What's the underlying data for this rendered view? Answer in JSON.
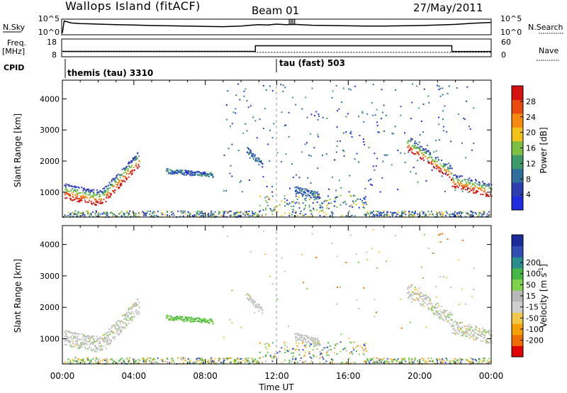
{
  "header": {
    "station": "Wallops Island (fitACF)",
    "beam": "Beam 01",
    "date": "27/May/2011"
  },
  "time_axis": {
    "label": "Time UT",
    "ticks": [
      "00:00",
      "04:00",
      "08:00",
      "12:00",
      "16:00",
      "20:00",
      "00:00"
    ]
  },
  "chart_data": [
    {
      "type": "line",
      "name": "noise-panel",
      "left_label": "N.Sky",
      "right_label": "N.Search",
      "left_ticks": [
        "10^5",
        "10^0"
      ],
      "right_ticks": [
        "10^5",
        "10^0"
      ],
      "x": [
        0,
        0.1,
        0.5,
        1,
        2,
        3,
        4,
        5,
        6,
        7,
        8,
        9,
        10,
        10.5,
        11,
        11.5,
        12,
        12.5,
        13,
        14,
        15,
        16,
        17,
        18,
        19,
        20,
        21,
        22,
        23,
        24
      ],
      "series": [
        {
          "values": [
            0.4,
            4.6,
            3.9,
            3.7,
            3.5,
            3.3,
            3.2,
            3.0,
            2.9,
            2.8,
            2.7,
            2.6,
            2.8,
            3.1,
            3.3,
            3.2,
            3.5,
            3.3,
            3.4,
            3.1,
            3.0,
            2.9,
            2.8,
            2.8,
            2.9,
            3.0,
            3.2,
            3.4,
            3.8,
            4.1
          ]
        }
      ],
      "ylim": [
        0,
        5
      ]
    },
    {
      "type": "line",
      "name": "frequency-panel",
      "left_label": "Freq.",
      "left_unit": "[MHz]",
      "right_label": "Nave",
      "left_ticks": [
        "18",
        "8"
      ],
      "right_ticks": [
        "60",
        "0"
      ],
      "x": [
        0,
        10.8,
        10.8,
        21.8,
        21.8,
        24
      ],
      "series": [
        {
          "values": [
            10.8,
            10.8,
            14.3,
            14.3,
            10.8,
            10.8
          ]
        }
      ],
      "nave_x": [
        0,
        10.8,
        10.8,
        24
      ],
      "nave_values": [
        11,
        11,
        10.3,
        10.3
      ],
      "ylim": [
        8,
        18
      ]
    },
    {
      "type": "table",
      "name": "cpid-panel",
      "label": "CPID",
      "segments": [
        {
          "start": 0,
          "text": "themis (tau) 3310"
        },
        {
          "start": 12,
          "text": "tau (fast) 503"
        }
      ]
    },
    {
      "type": "heatmap",
      "name": "power-panel",
      "ylabel": "Slant Range [km]",
      "yticks": [
        "1000",
        "2000",
        "3000",
        "4000"
      ],
      "ylim": [
        200,
        4600
      ],
      "xlim": [
        0,
        24
      ],
      "colorbar": {
        "label": "Power [dB]",
        "ticks": [
          "4",
          "8",
          "12",
          "16",
          "20",
          "24",
          "28"
        ],
        "range": [
          0,
          32
        ]
      }
    },
    {
      "type": "heatmap",
      "name": "velocity-panel",
      "ylabel": "Slant Range [km]",
      "yticks": [
        "1000",
        "2000",
        "3000",
        "4000"
      ],
      "ylim": [
        200,
        4600
      ],
      "xlim": [
        0,
        24
      ],
      "colorbar": {
        "label": "Velocity [m s",
        "label_exp": "-1",
        "label_end": "]",
        "ticks": [
          "-200",
          "-100",
          "-50",
          "-15",
          "15",
          "50",
          "100",
          "200"
        ],
        "colors": [
          "#e10000",
          "#f06e00",
          "#f2a100",
          "#f2c84b",
          "#cfcfcf",
          "#b8b8b8",
          "#7fd14a",
          "#45b745",
          "#2a8f8c",
          "#2f4fb5",
          "#1a2c9a"
        ]
      }
    }
  ],
  "colors": {
    "power_scale": [
      "#1e2ce0",
      "#2d3fb0",
      "#2f6f9d",
      "#3f9a6a",
      "#7bc043",
      "#f3c21a",
      "#f58a0f",
      "#ea4a10",
      "#d60f0f"
    ],
    "ground_scatter": "#bfbfbf"
  }
}
